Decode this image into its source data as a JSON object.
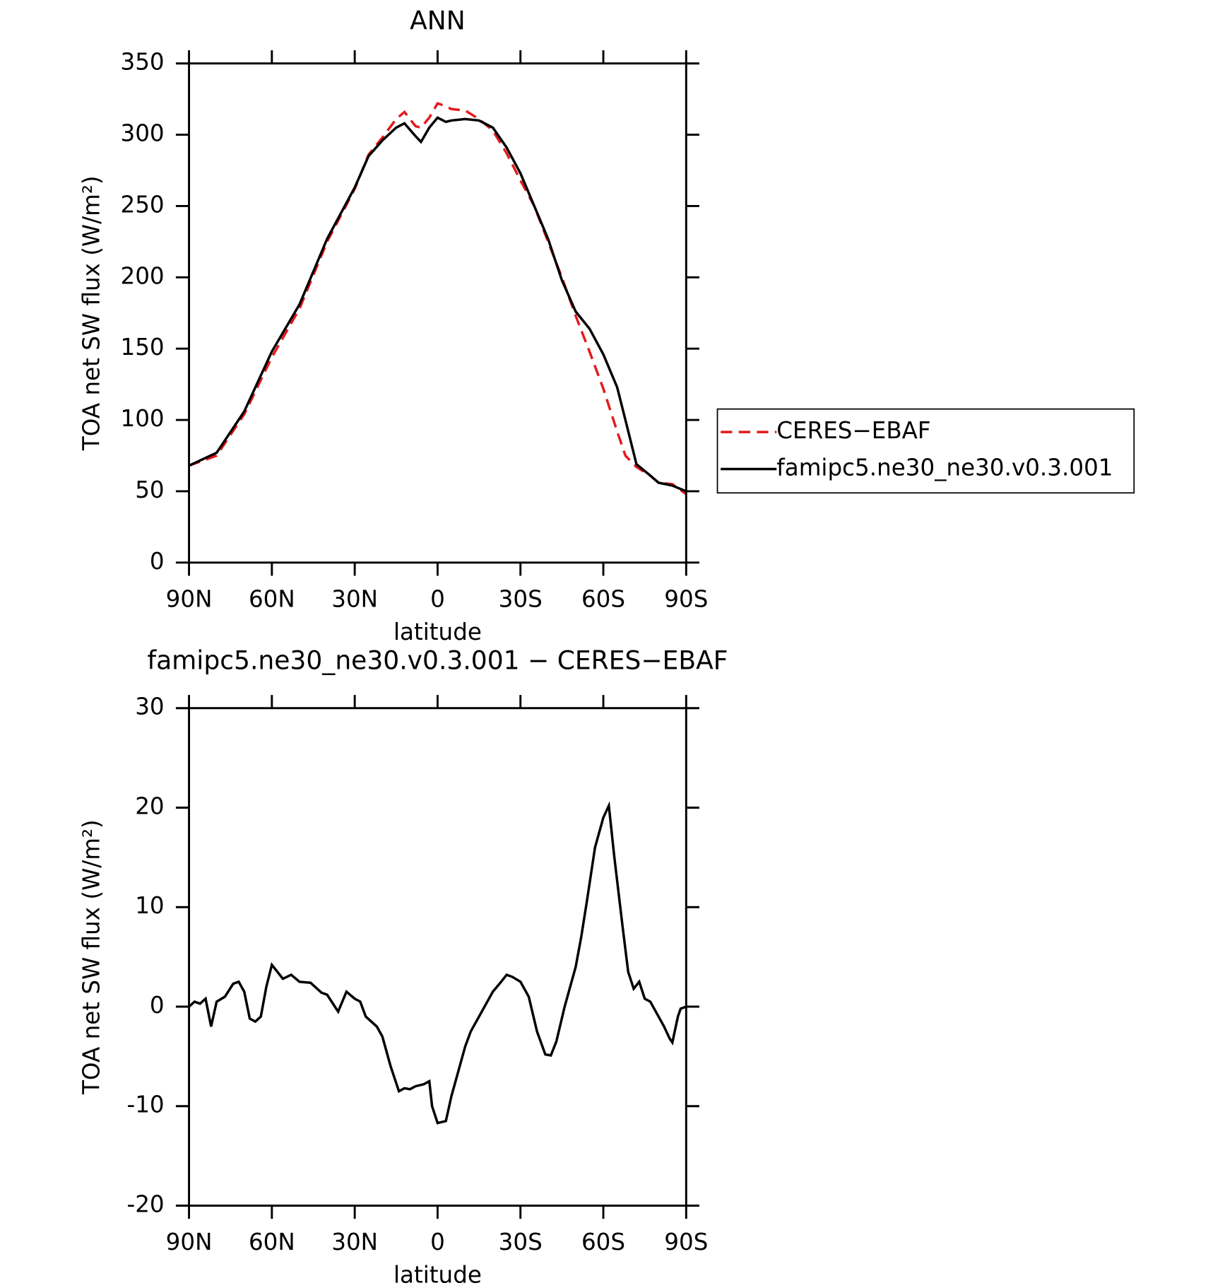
{
  "chart_data": [
    {
      "type": "line",
      "title": "ANN",
      "x_label": "latitude",
      "y_label": "TOA net SW flux (W/m²)",
      "x": [
        90,
        80,
        70,
        60,
        50,
        40,
        30,
        25,
        20,
        15,
        12,
        8,
        6,
        3,
        0,
        -3,
        -5,
        -10,
        -15,
        -20,
        -25,
        -30,
        -35,
        -40,
        -45,
        -50,
        -55,
        -60,
        -65,
        -68,
        -72,
        -77,
        -80,
        -85,
        -90
      ],
      "series": [
        {
          "name": "CERES−EBAF",
          "color": "#e41a1c",
          "line_style": "dashed",
          "values": [
            68,
            75,
            104,
            144,
            178,
            225,
            262,
            286,
            298,
            311,
            316,
            306,
            305,
            312,
            322,
            320,
            318,
            317,
            311,
            303,
            287,
            268,
            250,
            225,
            200,
            173,
            148,
            122,
            92,
            75,
            67,
            61,
            56,
            55,
            48
          ]
        },
        {
          "name": "famipc5.ne30_ne30.v0.3.001",
          "color": "#000000",
          "line_style": "solid",
          "values": [
            68,
            77,
            106,
            148,
            181,
            227,
            263,
            285,
            296,
            305,
            308,
            299,
            295,
            305,
            312,
            309,
            310,
            311,
            310,
            305,
            291,
            273,
            250,
            227,
            198,
            176,
            164,
            146,
            123,
            100,
            69,
            61,
            56,
            54,
            50
          ]
        }
      ],
      "xlim": [
        90,
        -90
      ],
      "xticks": [
        {
          "value": 90,
          "label": "90N"
        },
        {
          "value": 60,
          "label": "60N"
        },
        {
          "value": 30,
          "label": "30N"
        },
        0,
        {
          "value": -30,
          "label": "30S"
        },
        {
          "value": -60,
          "label": "60S"
        },
        {
          "value": -90,
          "label": "90S"
        }
      ],
      "ylim": [
        0,
        350
      ],
      "yticks": [
        0,
        50,
        100,
        150,
        200,
        250,
        300,
        350
      ],
      "legend_position": "right"
    },
    {
      "type": "line",
      "title": "famipc5.ne30_ne30.v0.3.001 − CERES−EBAF",
      "x_label": "latitude",
      "y_label": "TOA net SW flux (W/m²)",
      "x": [
        90,
        88,
        86,
        84,
        82,
        80,
        77,
        74,
        72,
        70,
        68,
        66,
        64,
        62,
        60,
        58,
        56,
        53,
        50,
        46,
        42,
        40,
        36,
        33,
        30,
        28,
        26,
        22,
        20,
        17,
        14,
        12,
        10,
        8,
        5,
        3,
        2,
        0,
        -3,
        -5,
        -8,
        -10,
        -12,
        -15,
        -18,
        -20,
        -23,
        -25,
        -27,
        -30,
        -33,
        -36,
        -39,
        -41,
        -43,
        -46,
        -50,
        -52,
        -54,
        -57,
        -60,
        -62,
        -64,
        -67,
        -69,
        -71,
        -73,
        -75,
        -77,
        -80,
        -82,
        -84,
        -85,
        -87,
        -88,
        -90
      ],
      "series": [
        {
          "color": "#000000",
          "line_style": "solid",
          "values": [
            0,
            0.5,
            0.3,
            0.8,
            -2,
            0.5,
            1,
            2.3,
            2.5,
            1.5,
            -1.2,
            -1.5,
            -1,
            2,
            4.2,
            3.5,
            2.8,
            3.2,
            2.5,
            2.4,
            1.4,
            1.2,
            -0.5,
            1.5,
            0.8,
            0.5,
            -1,
            -2,
            -3,
            -6,
            -8.5,
            -8.2,
            -8.3,
            -8,
            -7.8,
            -7.5,
            -10,
            -11.7,
            -11.5,
            -9,
            -6,
            -4,
            -2.5,
            -1,
            0.5,
            1.5,
            2.5,
            3.2,
            3,
            2.5,
            1,
            -2.5,
            -4.8,
            -4.9,
            -3.5,
            0,
            4,
            7,
            10.5,
            16,
            19,
            20.2,
            15,
            8,
            3.5,
            1.8,
            2.5,
            0.8,
            0.5,
            -1,
            -2,
            -3.2,
            -3.6,
            -1,
            -0.2,
            0
          ]
        }
      ],
      "xlim": [
        90,
        -90
      ],
      "xticks": [
        {
          "value": 90,
          "label": "90N"
        },
        {
          "value": 60,
          "label": "60N"
        },
        {
          "value": 30,
          "label": "30N"
        },
        0,
        {
          "value": -30,
          "label": "30S"
        },
        {
          "value": -60,
          "label": "60S"
        },
        {
          "value": -90,
          "label": "90S"
        }
      ],
      "ylim": [
        -20,
        30
      ],
      "yticks": [
        -20,
        -10,
        0,
        10,
        20,
        30
      ]
    }
  ]
}
